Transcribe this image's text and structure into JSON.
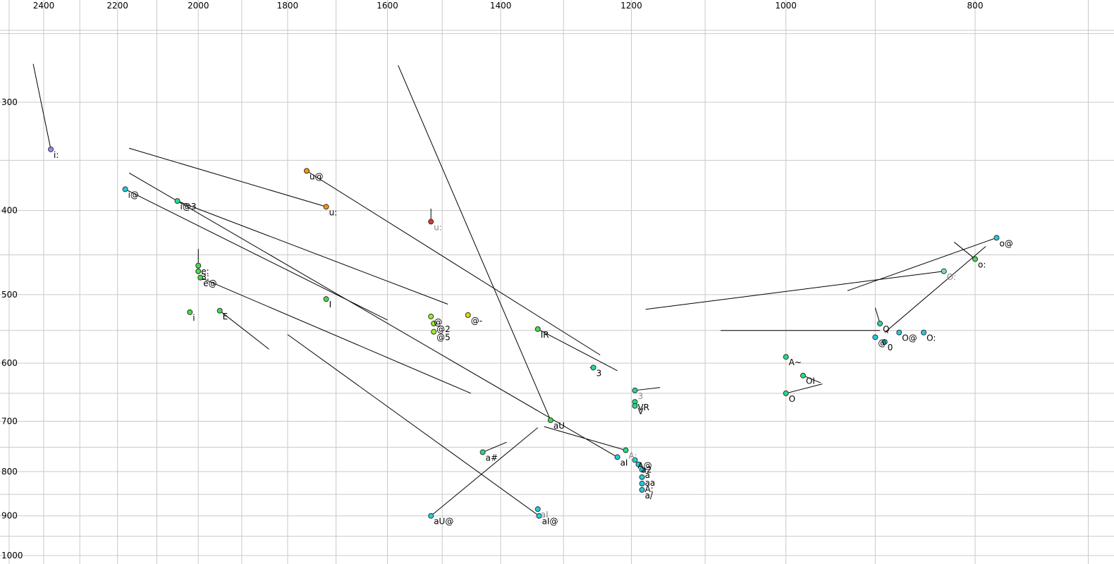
{
  "chart_data": {
    "type": "scatter",
    "title": "",
    "xlabel": "",
    "ylabel": "",
    "x_axis": {
      "reversed": true,
      "scale": "log",
      "ticks": [
        2400,
        2200,
        2000,
        1800,
        1600,
        1400,
        1200,
        1000,
        800
      ],
      "tick_labels": [
        "2400",
        "2200",
        "2000",
        "1800",
        "1600",
        "1400",
        "1200",
        "1000",
        "800"
      ],
      "position": "top"
    },
    "y_axis": {
      "scale": "log",
      "ticks": [
        300,
        400,
        500,
        600,
        700,
        800,
        900,
        1000
      ],
      "tick_labels": [
        "300",
        "400",
        "500",
        "600",
        "700",
        "800",
        "900",
        "1000"
      ],
      "position": "left"
    },
    "grid": true,
    "points": [
      {
        "label": "i:",
        "f2": 2380,
        "f1": 340,
        "color": "#8a8aff",
        "label_color": "#000000",
        "trajectory": [
          2430,
          271
        ]
      },
      {
        "label": "u@",
        "f2": 1760,
        "f1": 360,
        "color": "#ff9900",
        "label_color": "#000000",
        "trajectory": [
          1245,
          587
        ]
      },
      {
        "label": "i@",
        "f2": 2180,
        "f1": 378,
        "color": "#22ccdd",
        "label_color": "#000000",
        "trajectory": [
          1600,
          535
        ]
      },
      {
        "label": "i@3",
        "f2": 2050,
        "f1": 390,
        "color": "#22dd88",
        "label_color": "#000000",
        "trajectory": [
          1490,
          513
        ]
      },
      {
        "label": "u:",
        "f2": 1720,
        "f1": 396,
        "color": "#ff9900",
        "label_color": "#000000",
        "trajectory": [
          2170,
          339
        ]
      },
      {
        "label": "u:",
        "f2": 1520,
        "f1": 412,
        "color": "#d63a2f",
        "label_color": "#888888",
        "trajectory": [
          1520,
          398
        ]
      },
      {
        "label": "e:",
        "f2": 2000,
        "f1": 463,
        "color": "#44dd44",
        "label_color": "#000000",
        "trajectory": [
          2000,
          443
        ]
      },
      {
        "label": "3:",
        "f2": 2000,
        "f1": 470,
        "color": "#44dd44",
        "label_color": "#000000"
      },
      {
        "label": "e@",
        "f2": 1995,
        "f1": 478,
        "color": "#44dd44",
        "label_color": "#000000",
        "trajectory": [
          1450,
          650
        ]
      },
      {
        "label": "I",
        "f2": 1720,
        "f1": 506,
        "color": "#44dd44",
        "label_color": "#000000"
      },
      {
        "label": "i",
        "f2": 2020,
        "f1": 524,
        "color": "#44dd44",
        "label_color": "#000000"
      },
      {
        "label": "E",
        "f2": 1950,
        "f1": 522,
        "color": "#44dd44",
        "label_color": "#000000",
        "trajectory": [
          1840,
          578
        ]
      },
      {
        "label": "@",
        "f2": 1520,
        "f1": 530,
        "color": "#99ee22",
        "label_color": "#000000"
      },
      {
        "label": "@2",
        "f2": 1515,
        "f1": 540,
        "color": "#99ee22",
        "label_color": "#000000"
      },
      {
        "label": "@5",
        "f2": 1515,
        "f1": 552,
        "color": "#99ee22",
        "label_color": "#000000"
      },
      {
        "label": "@-",
        "f2": 1455,
        "f1": 528,
        "color": "#dddd00",
        "label_color": "#000000"
      },
      {
        "label": "IR",
        "f2": 1340,
        "f1": 548,
        "color": "#44dd44",
        "label_color": "#000000",
        "trajectory": [
          1220,
          612
        ]
      },
      {
        "label": "3",
        "f2": 1255,
        "f1": 607,
        "color": "#22dd88",
        "label_color": "#000000",
        "trajectory": [
          1260,
          607
        ]
      },
      {
        "label": "3",
        "f2": 1195,
        "f1": 645,
        "color": "#22dd88",
        "label_color": "#888888",
        "trajectory": [
          1160,
          640
        ]
      },
      {
        "label": "VR",
        "f2": 1195,
        "f1": 665,
        "color": "#22dd88",
        "label_color": "#000000"
      },
      {
        "label": "V",
        "f2": 1195,
        "f1": 672,
        "color": "#22dd88",
        "label_color": "#000000"
      },
      {
        "label": "aU",
        "f2": 1320,
        "f1": 698,
        "color": "#44dd44",
        "label_color": "#000000",
        "trajectory": [
          1580,
          272
        ]
      },
      {
        "label": "a#",
        "f2": 1430,
        "f1": 760,
        "color": "#22dd88",
        "label_color": "#000000",
        "trajectory": [
          1390,
          740
        ]
      },
      {
        "label": "aU@",
        "f2": 1520,
        "f1": 900,
        "color": "#22ccdd",
        "label_color": "#000000",
        "trajectory": [
          1340,
          712
        ]
      },
      {
        "label": "aI",
        "f2": 1340,
        "f1": 884,
        "color": "#22ccdd",
        "label_color": "#888888"
      },
      {
        "label": "aI@",
        "f2": 1338,
        "f1": 900,
        "color": "#22ccdd",
        "label_color": "#000000",
        "trajectory": [
          1800,
          556
        ]
      },
      {
        "label": "A:",
        "f2": 1208,
        "f1": 756,
        "color": "#22dd88",
        "label_color": "#888888",
        "trajectory": [
          1330,
          710
        ]
      },
      {
        "label": "aI",
        "f2": 1220,
        "f1": 770,
        "color": "#22ccdd",
        "label_color": "#000000",
        "trajectory": [
          2170,
          362
        ]
      },
      {
        "label": "A@",
        "f2": 1195,
        "f1": 776,
        "color": "#22ccdd",
        "label_color": "#000000"
      },
      {
        "label": "a2",
        "f2": 1190,
        "f1": 785,
        "color": "#22ccdd",
        "label_color": "#000000"
      },
      {
        "label": "a",
        "f2": 1185,
        "f1": 796,
        "color": "#22ccdd",
        "label_color": "#000000"
      },
      {
        "label": "aa",
        "f2": 1185,
        "f1": 812,
        "color": "#22ccdd",
        "label_color": "#000000"
      },
      {
        "label": "A:",
        "f2": 1185,
        "f1": 826,
        "color": "#22ccdd",
        "label_color": "#000000"
      },
      {
        "label": "a/",
        "f2": 1185,
        "f1": 840,
        "color": "#22ccdd",
        "label_color": "#000000"
      },
      {
        "label": "A~",
        "f2": 1000,
        "f1": 590,
        "color": "#22dd88",
        "label_color": "#000000"
      },
      {
        "label": "OI",
        "f2": 980,
        "f1": 620,
        "color": "#22dd88",
        "label_color": "#000000",
        "trajectory": [
          960,
          632
        ]
      },
      {
        "label": "O",
        "f2": 1000,
        "f1": 650,
        "color": "#22dd88",
        "label_color": "#000000",
        "trajectory": [
          958,
          634
        ]
      },
      {
        "label": "Q",
        "f2": 895,
        "f1": 540,
        "color": "#22dd88",
        "label_color": "#000000",
        "trajectory": [
          900,
          518
        ]
      },
      {
        "label": "O@",
        "f2": 875,
        "f1": 553,
        "color": "#22ccdd",
        "label_color": "#000000"
      },
      {
        "label": "O:",
        "f2": 850,
        "f1": 553,
        "color": "#22ccdd",
        "label_color": "#000000"
      },
      {
        "label": "@",
        "f2": 900,
        "f1": 560,
        "color": "#22ccdd",
        "label_color": "#000000"
      },
      {
        "label": "0",
        "f2": 890,
        "f1": 567,
        "color": "#22ccdd",
        "label_color": "#000000"
      },
      {
        "label": "O:",
        "f2": 830,
        "f1": 470,
        "color": "#77ddcc",
        "label_color": "#888888",
        "trajectory": [
          1180,
          520
        ]
      },
      {
        "label": "o@",
        "f2": 780,
        "f1": 430,
        "color": "#22ccdd",
        "label_color": "#000000",
        "trajectory": [
          930,
          495
        ]
      },
      {
        "label": "o:",
        "f2": 800,
        "f1": 455,
        "color": "#44dd44",
        "label_color": "#000000",
        "trajectory": [
          820,
          435
        ]
      },
      {
        "label": "",
        "f2": 1080,
        "f1": 550,
        "color": "#22ccdd",
        "label_color": "#000000",
        "trajectory": [
          895,
          550
        ],
        "hidden_marker": true
      },
      {
        "label": "",
        "f2": 890,
        "f1": 553,
        "color": "#22ccdd",
        "label_color": "#000000",
        "trajectory": [
          790,
          440
        ],
        "hidden_marker": true
      }
    ]
  }
}
